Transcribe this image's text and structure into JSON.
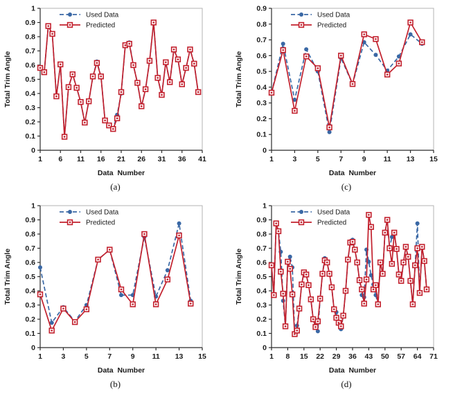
{
  "figure": {
    "background": "#ffffff",
    "colors": {
      "used_data": "#3a68a5",
      "predicted": "#c2202d",
      "axis_line": "#2b2b2b",
      "plot_border": "#b3b3b3",
      "tick_text": "#1a1a1a",
      "legend_text": "#1a1a1a",
      "marker_fill": "#ffffff"
    },
    "legend_labels": [
      "Used Data",
      "Predicted"
    ]
  },
  "chart_data": [
    {
      "id": "a",
      "type": "line",
      "caption": "(a)",
      "xlabel": "Data  Number",
      "ylabel": "Total Trim Angle",
      "xlim": [
        1,
        41
      ],
      "ylim": [
        0,
        1
      ],
      "x_ticks": [
        "1",
        "6",
        "11",
        "16",
        "21",
        "26",
        "31",
        "36",
        "41"
      ],
      "y_ticks": [
        "0",
        "0.1",
        "0.2",
        "0.3",
        "0.4",
        "0.5",
        "0.6",
        "0.7",
        "0.8",
        "0.9",
        "1"
      ],
      "legend_position": "top-left",
      "grid": false,
      "series": [
        {
          "name": "Used Data",
          "marker": "circle",
          "line": "dashed",
          "values": [
            0.58,
            0.55,
            0.875,
            0.82,
            0.38,
            0.605,
            0.095,
            0.445,
            0.535,
            0.44,
            0.34,
            0.195,
            0.345,
            0.52,
            0.625,
            0.52,
            0.21,
            0.175,
            0.15,
            0.25,
            0.4,
            0.74,
            0.76,
            0.6,
            0.475,
            0.31,
            0.43,
            0.63,
            0.9,
            0.51,
            0.39,
            0.62,
            0.48,
            0.71,
            0.64,
            0.465,
            0.58,
            0.71,
            0.61,
            0.41
          ]
        },
        {
          "name": "Predicted",
          "marker": "square",
          "line": "solid",
          "values": [
            0.58,
            0.55,
            0.875,
            0.82,
            0.38,
            0.605,
            0.095,
            0.445,
            0.535,
            0.44,
            0.34,
            0.195,
            0.345,
            0.52,
            0.615,
            0.52,
            0.21,
            0.175,
            0.15,
            0.225,
            0.41,
            0.74,
            0.75,
            0.6,
            0.475,
            0.31,
            0.43,
            0.63,
            0.9,
            0.51,
            0.39,
            0.62,
            0.48,
            0.71,
            0.64,
            0.465,
            0.58,
            0.71,
            0.61,
            0.41
          ]
        }
      ]
    },
    {
      "id": "c",
      "type": "line",
      "caption": "(c)",
      "xlabel": "Data  Number",
      "ylabel": "Total Trim Angle",
      "xlim": [
        1,
        15
      ],
      "ylim": [
        0,
        0.9
      ],
      "x_ticks": [
        "1",
        "3",
        "5",
        "7",
        "9",
        "11",
        "13",
        "15"
      ],
      "y_ticks": [
        "0",
        "0.1",
        "0.2",
        "0.3",
        "0.4",
        "0.5",
        "0.6",
        "0.7",
        "0.8",
        "0.9"
      ],
      "legend_position": "top-left",
      "grid": false,
      "series": [
        {
          "name": "Used Data",
          "marker": "circle",
          "line": "dashed",
          "values": [
            0.365,
            0.675,
            0.32,
            0.64,
            0.5,
            0.115,
            0.585,
            0.42,
            0.685,
            0.605,
            0.505,
            0.595,
            0.735,
            0.675
          ]
        },
        {
          "name": "Predicted",
          "marker": "square",
          "line": "solid",
          "values": [
            0.365,
            0.635,
            0.25,
            0.595,
            0.52,
            0.145,
            0.6,
            0.42,
            0.735,
            0.705,
            0.48,
            0.55,
            0.81,
            0.685
          ]
        }
      ]
    },
    {
      "id": "b",
      "type": "line",
      "caption": "(b)",
      "xlabel": "Data  Number",
      "ylabel": "Total Trim Angle",
      "xlim": [
        1,
        15
      ],
      "ylim": [
        0,
        1
      ],
      "x_ticks": [
        "1",
        "3",
        "5",
        "7",
        "9",
        "11",
        "13",
        "15"
      ],
      "y_ticks": [
        "0",
        "0.1",
        "0.2",
        "0.3",
        "0.4",
        "0.5",
        "0.6",
        "0.7",
        "0.8",
        "0.9",
        "1"
      ],
      "legend_position": "top-left",
      "grid": false,
      "series": [
        {
          "name": "Used Data",
          "marker": "circle",
          "line": "dashed",
          "values": [
            0.565,
            0.175,
            0.285,
            0.185,
            0.3,
            0.62,
            0.69,
            0.37,
            0.37,
            0.78,
            0.36,
            0.545,
            0.875,
            0.33
          ]
        },
        {
          "name": "Predicted",
          "marker": "square",
          "line": "solid",
          "values": [
            0.375,
            0.12,
            0.275,
            0.18,
            0.27,
            0.62,
            0.69,
            0.41,
            0.305,
            0.8,
            0.305,
            0.48,
            0.79,
            0.31
          ]
        }
      ]
    },
    {
      "id": "d",
      "type": "line",
      "caption": "(d)",
      "xlabel": "Data  Number",
      "ylabel": "Total Trim Angle",
      "xlim": [
        1,
        71
      ],
      "ylim": [
        0,
        1
      ],
      "x_ticks": [
        "1",
        "8",
        "15",
        "22",
        "29",
        "36",
        "43",
        "50",
        "57",
        "64",
        "71"
      ],
      "y_ticks": [
        "0",
        "0.1",
        "0.2",
        "0.3",
        "0.4",
        "0.5",
        "0.6",
        "0.7",
        "0.8",
        "0.9",
        "1"
      ],
      "legend_position": "top-left",
      "grid": false,
      "series": [
        {
          "name": "Used Data",
          "marker": "circle",
          "line": "dashed",
          "values": [
            0.58,
            0.37,
            0.875,
            0.82,
            0.675,
            0.33,
            0.15,
            0.605,
            0.64,
            0.565,
            0.095,
            0.155,
            0.275,
            0.445,
            0.53,
            0.515,
            0.44,
            0.34,
            0.2,
            0.145,
            0.115,
            0.345,
            0.52,
            0.63,
            0.6,
            0.52,
            0.425,
            0.27,
            0.25,
            0.175,
            0.13,
            0.225,
            0.4,
            0.62,
            0.74,
            0.76,
            0.69,
            0.6,
            0.475,
            0.37,
            0.355,
            0.69,
            0.605,
            0.51,
            0.445,
            0.37,
            0.305,
            0.6,
            0.52,
            0.81,
            0.9,
            0.7,
            0.78,
            0.81,
            0.695,
            0.515,
            0.47,
            0.6,
            0.71,
            0.64,
            0.47,
            0.305,
            0.58,
            0.875,
            0.385,
            0.71,
            0.61,
            0.41
          ]
        },
        {
          "name": "Predicted",
          "marker": "square",
          "line": "solid",
          "values": [
            0.58,
            0.37,
            0.875,
            0.82,
            0.535,
            0.38,
            0.15,
            0.605,
            0.555,
            0.375,
            0.095,
            0.12,
            0.275,
            0.445,
            0.53,
            0.515,
            0.44,
            0.34,
            0.2,
            0.145,
            0.185,
            0.345,
            0.52,
            0.615,
            0.6,
            0.52,
            0.425,
            0.27,
            0.21,
            0.175,
            0.15,
            0.225,
            0.4,
            0.62,
            0.74,
            0.745,
            0.69,
            0.6,
            0.475,
            0.41,
            0.31,
            0.48,
            0.935,
            0.85,
            0.41,
            0.44,
            0.305,
            0.6,
            0.52,
            0.81,
            0.9,
            0.7,
            0.59,
            0.81,
            0.695,
            0.515,
            0.47,
            0.6,
            0.71,
            0.64,
            0.47,
            0.305,
            0.58,
            0.7,
            0.385,
            0.71,
            0.61,
            0.41
          ]
        }
      ]
    }
  ]
}
